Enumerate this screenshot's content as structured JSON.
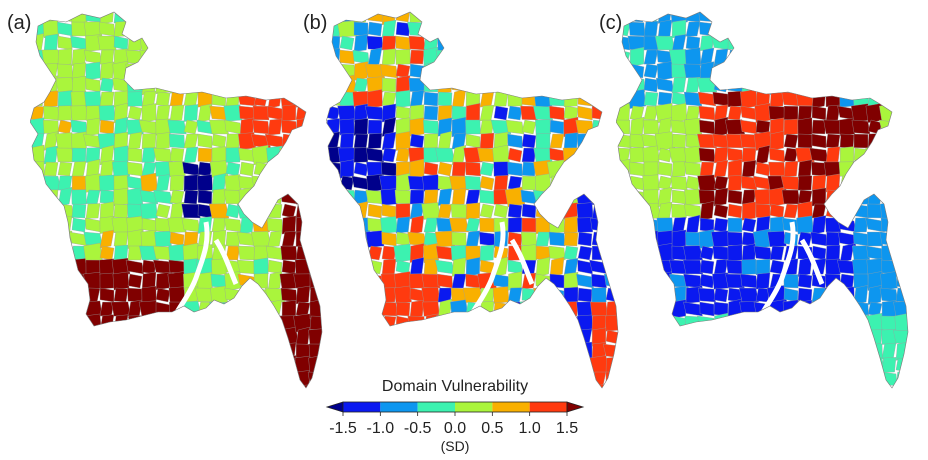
{
  "panels": [
    {
      "label": "(a)",
      "map": "bangladesh-upazila-choropleth-a"
    },
    {
      "label": "(b)",
      "map": "bangladesh-upazila-choropleth-b"
    },
    {
      "label": "(c)",
      "map": "bangladesh-upazila-choropleth-c"
    }
  ],
  "colorbar": {
    "title": "Domain Vulnerability",
    "unit": "(SD)",
    "ticks": [
      "-1.5",
      "-1.0",
      "-0.5",
      "0.0",
      "0.5",
      "1.0",
      "1.5"
    ],
    "bins": [
      {
        "from": -2.0,
        "to": -1.5,
        "color": "#00008b"
      },
      {
        "from": -1.5,
        "to": -1.0,
        "color": "#0a19f0"
      },
      {
        "from": -1.0,
        "to": -0.5,
        "color": "#0d96ef"
      },
      {
        "from": -0.5,
        "to": 0.0,
        "color": "#3cf2b0"
      },
      {
        "from": 0.0,
        "to": 0.5,
        "color": "#aaf53c"
      },
      {
        "from": 0.5,
        "to": 1.0,
        "color": "#f9b000"
      },
      {
        "from": 1.0,
        "to": 1.5,
        "color": "#ff3a0f"
      },
      {
        "from": 1.5,
        "to": 2.0,
        "color": "#800000"
      }
    ]
  }
}
